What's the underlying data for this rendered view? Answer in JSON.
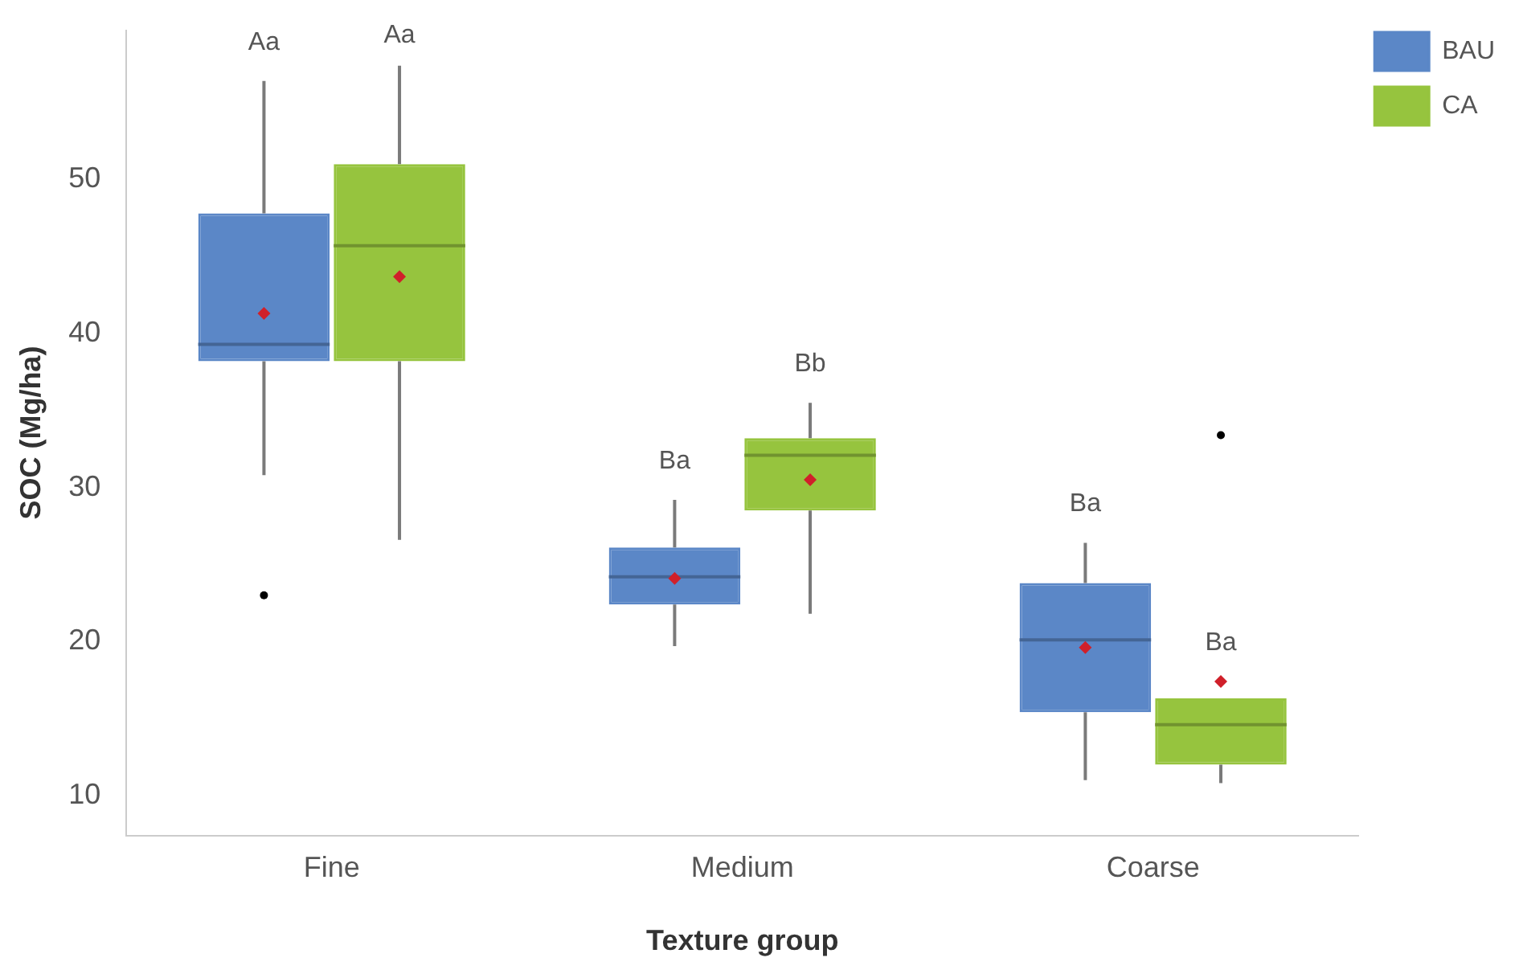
{
  "chart_data": {
    "type": "box",
    "xlabel": "Texture group",
    "ylabel": "SOC (Mg/ha)",
    "categories": [
      "Fine",
      "Medium",
      "Coarse"
    ],
    "series": [
      {
        "name": "BAU",
        "color": "#5b87c7",
        "boxes": [
          {
            "low": 30.8,
            "q1": 38.2,
            "median": 39.3,
            "q3": 47.8,
            "high": 56.4,
            "mean": 41.3,
            "outliers": [
              23.0
            ]
          },
          {
            "low": 19.7,
            "q1": 22.4,
            "median": 24.2,
            "q3": 26.1,
            "high": 29.2,
            "mean": 24.1
          },
          {
            "low": 11.0,
            "q1": 15.4,
            "median": 20.1,
            "q3": 23.8,
            "high": 26.4,
            "mean": 19.6
          }
        ]
      },
      {
        "name": "CA",
        "color": "#96c43e",
        "boxes": [
          {
            "low": 26.6,
            "q1": 38.2,
            "median": 45.7,
            "q3": 51.0,
            "high": 57.4,
            "mean": 43.7
          },
          {
            "low": 21.8,
            "q1": 28.5,
            "median": 32.1,
            "q3": 33.2,
            "high": 35.5,
            "mean": 30.5
          },
          {
            "low": 10.8,
            "q1": 12.0,
            "median": 14.6,
            "q3": 16.3,
            "high": 16.3,
            "mean": 17.4,
            "outliers": [
              33.4
            ]
          }
        ]
      }
    ],
    "ylim": [
      7.4,
      59.7
    ],
    "yticks": [
      10,
      20,
      30,
      40,
      50
    ],
    "grid": false,
    "legend": "top right",
    "annotations": [
      "Aa",
      "Aa",
      "Ba",
      "Bb",
      "Ba",
      "Ba"
    ]
  }
}
